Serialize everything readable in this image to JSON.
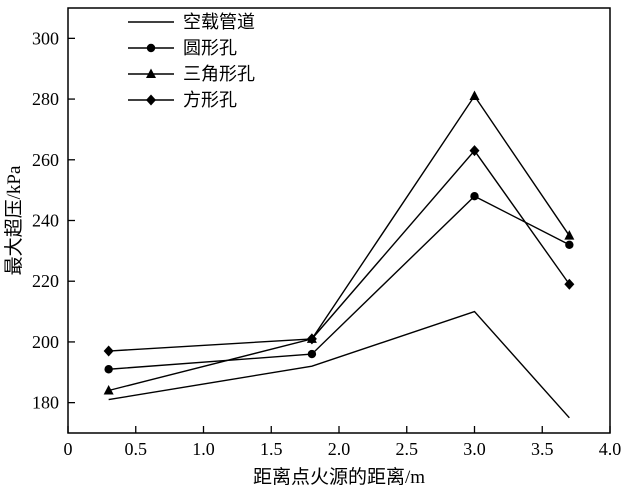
{
  "chart_data": {
    "type": "line",
    "title": "",
    "xlabel": "距离点火源的距离/m",
    "ylabel": "最大超压/kPa",
    "xlim": [
      0,
      4.0
    ],
    "ylim": [
      170,
      310
    ],
    "x_ticks": [
      0,
      0.5,
      1.0,
      1.5,
      2.0,
      2.5,
      3.0,
      3.5,
      4.0
    ],
    "y_ticks": [
      180,
      200,
      220,
      240,
      260,
      280,
      300
    ],
    "grid": false,
    "legend_position": "top-left",
    "line_color": "#000000",
    "background_color": "#ffffff",
    "x": [
      0.3,
      1.8,
      3.0,
      3.7
    ],
    "series": [
      {
        "name": "空载管道",
        "marker": "none",
        "values": [
          181,
          192,
          210,
          175
        ]
      },
      {
        "name": "圆形孔",
        "marker": "circle",
        "values": [
          191,
          196,
          248,
          232
        ]
      },
      {
        "name": "三角形孔",
        "marker": "triangle",
        "values": [
          184,
          201,
          281,
          235
        ]
      },
      {
        "name": "方形孔",
        "marker": "diamond",
        "values": [
          197,
          201,
          263,
          219
        ]
      }
    ]
  }
}
